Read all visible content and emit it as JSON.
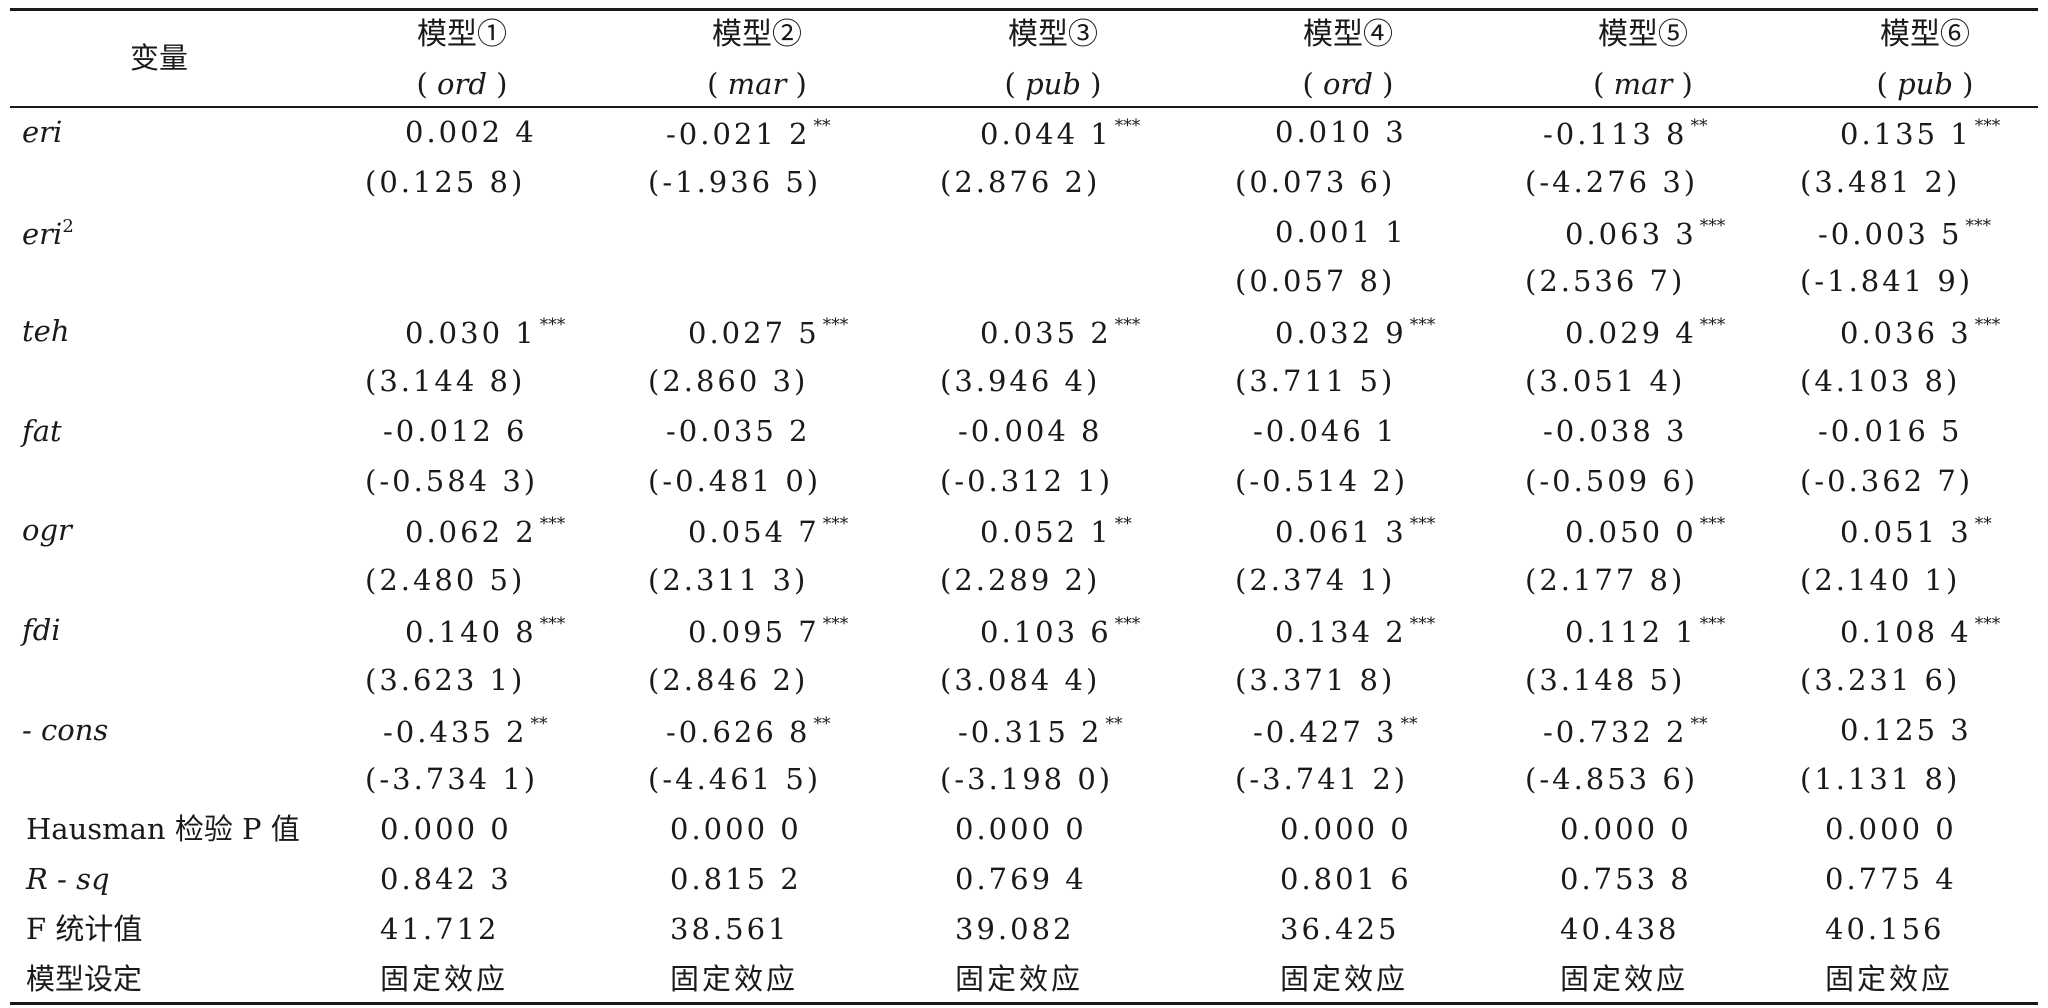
{
  "table": {
    "corner_label": "变量",
    "columns": [
      {
        "model": "模型①",
        "sub": "ord"
      },
      {
        "model": "模型②",
        "sub": "mar"
      },
      {
        "model": "模型③",
        "sub": "pub"
      },
      {
        "model": "模型④",
        "sub": "ord"
      },
      {
        "model": "模型⑤",
        "sub": "mar"
      },
      {
        "model": "模型⑥",
        "sub": "pub"
      }
    ],
    "rows": [
      {
        "label": "eri",
        "coef": [
          {
            "v": "0.002 4",
            "s": ""
          },
          {
            "v": "-0.021 2",
            "s": "**"
          },
          {
            "v": "0.044 1",
            "s": "***"
          },
          {
            "v": "0.010 3",
            "s": ""
          },
          {
            "v": "-0.113 8",
            "s": "**"
          },
          {
            "v": "0.135 1",
            "s": "***"
          }
        ],
        "t": [
          "(0.125 8)",
          "(-1.936 5)",
          "(2.876 2)",
          "(0.073 6)",
          "(-4.276 3)",
          "(3.481 2)"
        ]
      },
      {
        "label": "eri",
        "sup": "2",
        "coef": [
          {
            "v": "",
            "s": ""
          },
          {
            "v": "",
            "s": ""
          },
          {
            "v": "",
            "s": ""
          },
          {
            "v": "0.001 1",
            "s": ""
          },
          {
            "v": "0.063 3",
            "s": "***"
          },
          {
            "v": "-0.003 5",
            "s": "***"
          }
        ],
        "t": [
          "",
          "",
          "",
          "(0.057 8)",
          "(2.536 7)",
          "(-1.841 9)"
        ]
      },
      {
        "label": "teh",
        "coef": [
          {
            "v": "0.030 1",
            "s": "***"
          },
          {
            "v": "0.027 5",
            "s": "***"
          },
          {
            "v": "0.035 2",
            "s": "***"
          },
          {
            "v": "0.032 9",
            "s": "***"
          },
          {
            "v": "0.029 4",
            "s": "***"
          },
          {
            "v": "0.036 3",
            "s": "***"
          }
        ],
        "t": [
          "(3.144 8)",
          "(2.860 3)",
          "(3.946 4)",
          "(3.711 5)",
          "(3.051 4)",
          "(4.103 8)"
        ]
      },
      {
        "label": "fat",
        "coef": [
          {
            "v": "-0.012 6",
            "s": ""
          },
          {
            "v": "-0.035 2",
            "s": ""
          },
          {
            "v": "-0.004 8",
            "s": ""
          },
          {
            "v": "-0.046 1",
            "s": ""
          },
          {
            "v": "-0.038 3",
            "s": ""
          },
          {
            "v": "-0.016 5",
            "s": ""
          }
        ],
        "t": [
          "(-0.584 3)",
          "(-0.481 0)",
          "(-0.312 1)",
          "(-0.514 2)",
          "(-0.509 6)",
          "(-0.362 7)"
        ]
      },
      {
        "label": "ogr",
        "coef": [
          {
            "v": "0.062 2",
            "s": "***"
          },
          {
            "v": "0.054 7",
            "s": "***"
          },
          {
            "v": "0.052 1",
            "s": "**"
          },
          {
            "v": "0.061 3",
            "s": "***"
          },
          {
            "v": "0.050 0",
            "s": "***"
          },
          {
            "v": "0.051 3",
            "s": "**"
          }
        ],
        "t": [
          "(2.480 5)",
          "(2.311 3)",
          "(2.289 2)",
          "(2.374 1)",
          "(2.177 8)",
          "(2.140 1)"
        ]
      },
      {
        "label": "fdi",
        "coef": [
          {
            "v": "0.140 8",
            "s": "***"
          },
          {
            "v": "0.095 7",
            "s": "***"
          },
          {
            "v": "0.103 6",
            "s": "***"
          },
          {
            "v": "0.134 2",
            "s": "***"
          },
          {
            "v": "0.112 1",
            "s": "***"
          },
          {
            "v": "0.108 4",
            "s": "***"
          }
        ],
        "t": [
          "(3.623 1)",
          "(2.846 2)",
          "(3.084 4)",
          "(3.371 8)",
          "(3.148 5)",
          "(3.231 6)"
        ]
      },
      {
        "label": "- cons",
        "coef": [
          {
            "v": "-0.435 2",
            "s": "**"
          },
          {
            "v": "-0.626 8",
            "s": "**"
          },
          {
            "v": "-0.315 2",
            "s": "**"
          },
          {
            "v": "-0.427 3",
            "s": "**"
          },
          {
            "v": "-0.732 2",
            "s": "**"
          },
          {
            "v": "0.125 3",
            "s": ""
          }
        ],
        "t": [
          "(-3.734 1)",
          "(-4.461 5)",
          "(-3.198 0)",
          "(-3.741 2)",
          "(-4.853 6)",
          "(1.131 8)"
        ]
      }
    ],
    "stats": [
      {
        "label": "Hausman 检验 P 值",
        "italic": false,
        "values": [
          "0.000 0",
          "0.000 0",
          "0.000 0",
          "0.000 0",
          "0.000 0",
          "0.000 0"
        ]
      },
      {
        "label": "R - sq",
        "italic": true,
        "values": [
          "0.842 3",
          "0.815 2",
          "0.769 4",
          "0.801 6",
          "0.753 8",
          "0.775 4"
        ]
      },
      {
        "label": "F 统计值",
        "italic": false,
        "values": [
          "41.712",
          "38.561",
          "39.082",
          "36.425",
          "40.438",
          "40.156"
        ]
      },
      {
        "label": "模型设定",
        "italic": false,
        "values": [
          "固定效应",
          "固定效应",
          "固定效应",
          "固定效应",
          "固定效应",
          "固定效应"
        ]
      }
    ]
  }
}
